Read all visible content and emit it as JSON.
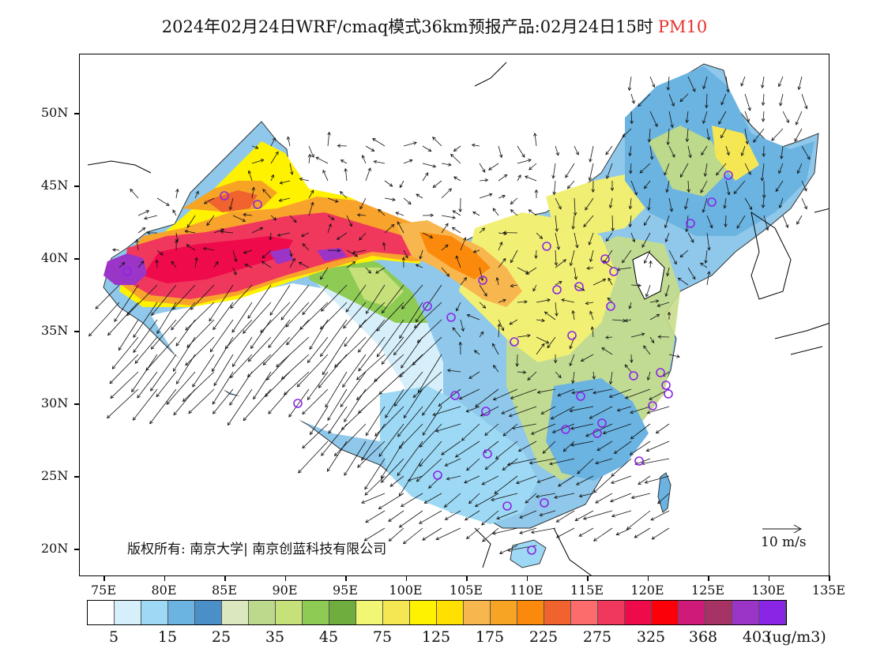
{
  "title": {
    "main": "2024年02月24日WRF/cmaq模式36km预报产品:02月24日15时",
    "pollutant": "PM10"
  },
  "axes": {
    "lat_labels": [
      "50N",
      "45N",
      "40N",
      "35N",
      "30N",
      "25N",
      "20N"
    ],
    "lon_labels": [
      "75E",
      "80E",
      "85E",
      "90E",
      "95E",
      "100E",
      "105E",
      "110E",
      "115E",
      "120E",
      "125E",
      "130E",
      "135E"
    ]
  },
  "copyright": "版权所有: 南京大学| 南京创蓝科技有限公司",
  "wind_reference": "10 m/s",
  "legend": {
    "colors": [
      "#ffffff",
      "#d6effa",
      "#9dd9f5",
      "#6bb3e0",
      "#4a8fc8",
      "#dbe8bf",
      "#bcd98c",
      "#c6e07a",
      "#8ecb54",
      "#6fae3e",
      "#f1f773",
      "#f5e653",
      "#fff200",
      "#ffe000",
      "#f8b64e",
      "#f7a425",
      "#fb8a0c",
      "#f0622e",
      "#fd6c6c",
      "#f0385d",
      "#ef0a4c",
      "#fb0009",
      "#cf1a7a",
      "#a63364",
      "#9a35c7",
      "#8a25e6"
    ],
    "labels": [
      "5",
      "15",
      "25",
      "35",
      "45",
      "75",
      "125",
      "175",
      "225",
      "275",
      "325",
      "368",
      "403"
    ],
    "unit": "(ug/m3)"
  }
}
